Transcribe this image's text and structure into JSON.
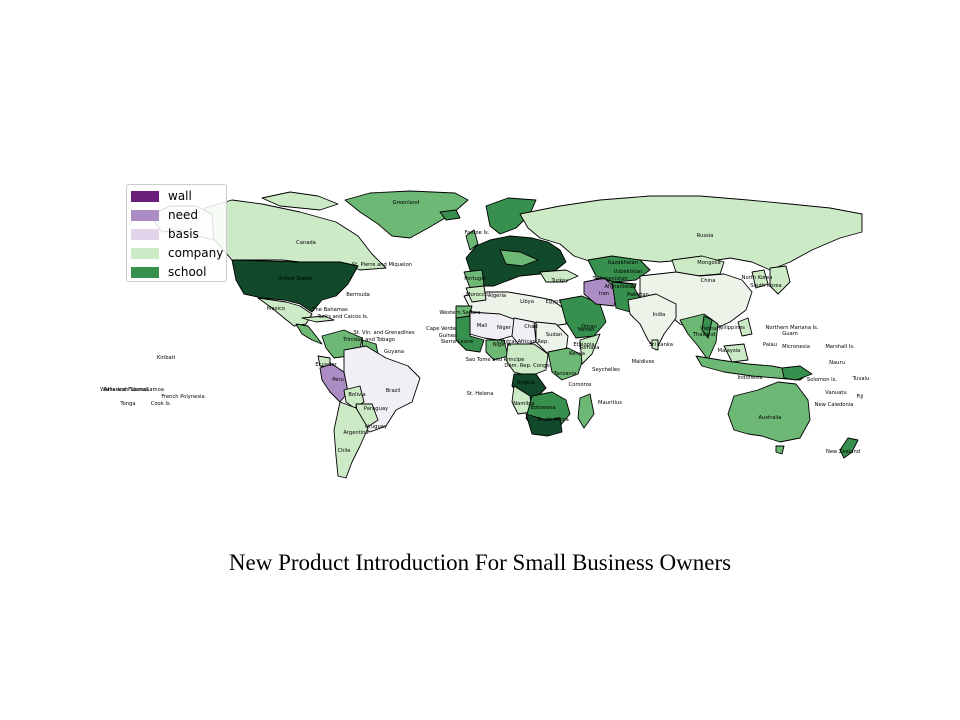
{
  "title": "New Product Introduction For Small Business Owners",
  "legend": [
    {
      "label": "wall",
      "color": "#6a1f7a"
    },
    {
      "label": "need",
      "color": "#ab8dc3"
    },
    {
      "label": "basis",
      "color": "#e2d4ea"
    },
    {
      "label": "company",
      "color": "#cdeac7"
    },
    {
      "label": "school",
      "color": "#38904e"
    }
  ],
  "map": {
    "colors": {
      "wall": "#6a1f7a",
      "need": "#ab8dc3",
      "basis": "#e2d4ea",
      "company": "#cdeac7",
      "school": "#38904e",
      "light": "#ecf4ea",
      "pale": "#f2eef5",
      "mid": "#6db874",
      "dark": "#12492a"
    },
    "labels": [
      "Greenland",
      "Faeroe Is.",
      "Russia",
      "Canada",
      "St. Pierre and Miquelon",
      "United States",
      "Bermuda",
      "Mexico",
      "The Bahamas",
      "Turks and Caicos Is.",
      "Trinidad and Tobago",
      "St. Vin. and Grenadines",
      "Guyana",
      "Ecuador",
      "Peru",
      "Brazil",
      "Bolivia",
      "Paraguay",
      "Uruguay",
      "Argentina",
      "Chile",
      "Kiribati",
      "Wallis and Futuna",
      "Samoa",
      "American Samoa",
      "French Polynesia",
      "Tonga",
      "Cook Is.",
      "Portugal",
      "Morocco",
      "Algeria",
      "Libya",
      "Egypt",
      "Western Sahara",
      "Mali",
      "Niger",
      "Chad",
      "Sudan",
      "Cape Verde",
      "Guinea",
      "Sierra Leone",
      "Sao Tome and Principe",
      "Angola",
      "Namibia",
      "Botswana",
      "South Africa",
      "Tanzania",
      "Kenya",
      "Somalia",
      "Seychelles",
      "Comoros",
      "Mauritius",
      "St. Helena",
      "Kazakhstan",
      "Mongolia",
      "China",
      "North Korea",
      "South Korea",
      "Turkey",
      "Iran",
      "Afghanistan",
      "Pakistan",
      "India",
      "Sri Lanka",
      "Maldives",
      "Oman",
      "Yemen",
      "Philippines",
      "Northern Mariana Is.",
      "Guam",
      "Palau",
      "Micronesia",
      "Marshall Is.",
      "Nauru",
      "Tuvalu",
      "Vanuatu",
      "Solomon Is.",
      "New Caledonia",
      "Fiji",
      "Australia",
      "New Zealand",
      "Indonesia",
      "Malaysia",
      "Thailand",
      "Vietnam",
      "Dem. Rep. Congo",
      "Central African Rep.",
      "Ethiopia",
      "Nigeria",
      "Uzbekistan",
      "Turkmenistan"
    ]
  }
}
